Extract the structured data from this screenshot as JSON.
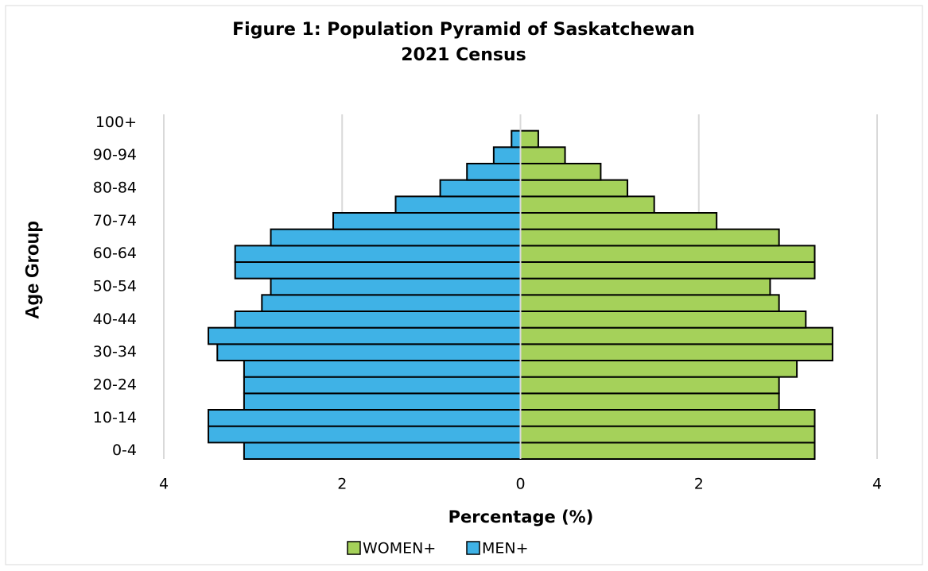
{
  "chart_data": {
    "type": "pyramid",
    "title": "Figure 1: Population Pyramid of Saskatchewan",
    "subtitle": "2021 Census",
    "x_label": "Percentage (%)",
    "y_label": "Age Group",
    "categories": [
      "0-4",
      null,
      "10-14",
      null,
      "20-24",
      null,
      "30-34",
      null,
      "40-44",
      null,
      "50-54",
      null,
      "60-64",
      null,
      "70-74",
      null,
      "80-84",
      null,
      "90-94",
      null,
      "100+"
    ],
    "series": [
      {
        "name": "WOMEN+",
        "color": "#a5d15a",
        "side": "right",
        "values": [
          3.3,
          3.3,
          3.3,
          2.9,
          2.9,
          3.1,
          3.5,
          3.5,
          3.2,
          2.9,
          2.8,
          3.3,
          3.3,
          2.9,
          2.2,
          1.5,
          1.2,
          0.9,
          0.5,
          0.2,
          0
        ]
      },
      {
        "name": "MEN+",
        "color": "#3fb2e6",
        "side": "left",
        "values": [
          3.1,
          3.5,
          3.5,
          3.1,
          3.1,
          3.1,
          3.4,
          3.5,
          3.2,
          2.9,
          2.8,
          3.2,
          3.2,
          2.8,
          2.1,
          1.4,
          0.9,
          0.6,
          0.3,
          0.1,
          0
        ]
      }
    ],
    "xlim": [
      -4,
      4
    ],
    "xticks": [
      {
        "value": -4,
        "label": "4"
      },
      {
        "value": -2,
        "label": "2"
      },
      0,
      2,
      4
    ],
    "grid": true,
    "legend": "bottom"
  }
}
